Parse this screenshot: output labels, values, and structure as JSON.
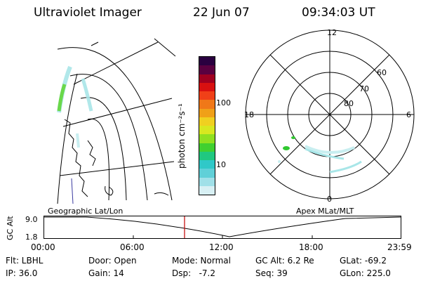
{
  "header": {
    "instrument": "Ultraviolet Imager",
    "date": "22 Jun 07",
    "time": "09:34:03 UT"
  },
  "colorbar": {
    "label": "photon cm⁻²s⁻¹",
    "tick_100": "100",
    "tick_10": "10",
    "colors": [
      "#2a0040",
      "#5a0040",
      "#a00020",
      "#d81010",
      "#f04018",
      "#f07818",
      "#f0a018",
      "#f0d020",
      "#d8e820",
      "#90e020",
      "#40d030",
      "#20c880",
      "#30c8c8",
      "#60d0d8",
      "#a0e0e8",
      "#d8f0f4"
    ]
  },
  "polar_plot": {
    "labels": {
      "top": "12",
      "bottom": "0",
      "left": "18",
      "right": "6",
      "lat60": "60",
      "lat70": "70",
      "lat80": "80"
    },
    "auroral_color": "#a8e6e8",
    "spot_color": "#30c830"
  },
  "geo_plot": {
    "auroral_color": "#a8e6e8",
    "bright_color": "#6ad84a"
  },
  "timeline": {
    "label_left": "Geographic Lat/Lon",
    "label_right": "Apex MLat/MLT",
    "ylabel": "GC Alt",
    "ytick_top": "9.0",
    "ytick_bottom": "1.8",
    "xticks": [
      "00:00",
      "06:00",
      "12:00",
      "18:00",
      "23:59"
    ],
    "marker_color": "#c00000"
  },
  "info": {
    "filter": "Flt: LBHL",
    "ip": "IP: 36.0",
    "door": "Door: Open",
    "gain": "Gain: 14",
    "mode": "Mode: Normal",
    "dsp": "Dsp:   -7.2",
    "gc_alt": "GC Alt: 6.2 Re",
    "seq": "Seq: 39",
    "glat": "GLat: -69.2",
    "glon": "GLon: 225.0"
  }
}
